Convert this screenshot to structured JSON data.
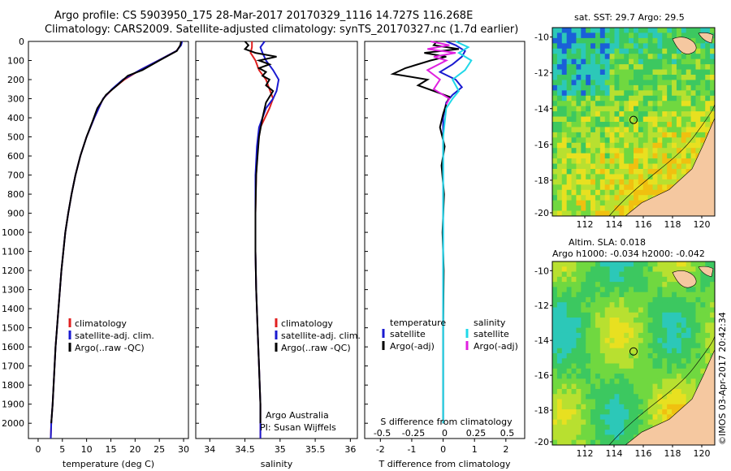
{
  "header": {
    "line1": "Argo profile: CS 5903950_175 28-Mar-2017 20170329_1116 14.727S 116.268E",
    "line2": "Climatology: CARS2009. Satellite-adjusted climatology: synTS_20170327.nc (1.7d earlier)"
  },
  "map_panels": {
    "sst_title": "sat. SST: 29.7 Argo: 29.5",
    "sla_title": "Altim. SLA: 0.018",
    "sla_subtitle": "Argo h1000: -0.034 h2000: -0.042",
    "x_ticks": [
      "112",
      "114",
      "116",
      "118",
      "120"
    ],
    "y_ticks": [
      "-10",
      "-12",
      "-14",
      "-16",
      "-18",
      "-20"
    ]
  },
  "footer": {
    "stamp": "©IMOS 03-Apr-2017 20:42:34"
  },
  "colors": {
    "climatology": "#e02020",
    "satellite": "#1a1ad0",
    "argo": "#000000",
    "sat_salinity": "#20d8e8",
    "argo_adj_salinity": "#e020e0",
    "land": "#f5c8a0"
  },
  "chart_data": [
    {
      "type": "line",
      "xlabel": "temperature (deg C)",
      "ylabel": "",
      "xlim": [
        -2,
        31
      ],
      "ylim": [
        2080,
        0
      ],
      "xticks": [
        "0",
        "5",
        "10",
        "15",
        "20",
        "25",
        "30"
      ],
      "yticks": [
        "0",
        "100",
        "200",
        "300",
        "400",
        "500",
        "600",
        "700",
        "800",
        "900",
        "1000",
        "1100",
        "1200",
        "1300",
        "1400",
        "1500",
        "1600",
        "1700",
        "1800",
        "1900",
        "2000"
      ],
      "legend": [
        "climatology",
        "satellite-adj. clim.",
        "Argo(..raw -QC)"
      ],
      "legend_position": "lower-left",
      "series": [
        {
          "name": "climatology",
          "color": "#e02020",
          "points": [
            [
              29.6,
              0
            ],
            [
              29.4,
              20
            ],
            [
              28.5,
              50
            ],
            [
              24.8,
              100
            ],
            [
              21,
              150
            ],
            [
              17.8,
              200
            ],
            [
              15.3,
              250
            ],
            [
              13.4,
              300
            ],
            [
              11.6,
              400
            ],
            [
              10,
              500
            ],
            [
              8.7,
              600
            ],
            [
              7.7,
              700
            ],
            [
              6.9,
              800
            ],
            [
              6.2,
              900
            ],
            [
              5.6,
              1000
            ],
            [
              5.2,
              1100
            ],
            [
              4.8,
              1200
            ],
            [
              4.5,
              1300
            ],
            [
              4.2,
              1400
            ],
            [
              3.9,
              1500
            ],
            [
              3.6,
              1600
            ],
            [
              3.4,
              1700
            ],
            [
              3.2,
              1800
            ],
            [
              3,
              1900
            ],
            [
              2.7,
              2000
            ],
            [
              2.6,
              2080
            ]
          ]
        },
        {
          "name": "satellite-adj. clim.",
          "color": "#1a1ad0",
          "points": [
            [
              29.7,
              0
            ],
            [
              29.5,
              20
            ],
            [
              28.5,
              50
            ],
            [
              24.8,
              100
            ],
            [
              21,
              150
            ],
            [
              17.5,
              200
            ],
            [
              15.2,
              250
            ],
            [
              13.4,
              300
            ],
            [
              11.6,
              400
            ],
            [
              10,
              500
            ],
            [
              8.7,
              600
            ],
            [
              7.7,
              700
            ],
            [
              6.9,
              800
            ],
            [
              6.2,
              900
            ],
            [
              5.6,
              1000
            ],
            [
              5.2,
              1100
            ],
            [
              4.8,
              1200
            ],
            [
              4.5,
              1300
            ],
            [
              4.2,
              1400
            ],
            [
              3.9,
              1500
            ],
            [
              3.6,
              1600
            ],
            [
              3.4,
              1700
            ],
            [
              3.2,
              1800
            ],
            [
              3,
              1900
            ],
            [
              2.7,
              2000
            ],
            [
              2.6,
              2080
            ]
          ]
        },
        {
          "name": "Argo(..raw -QC)",
          "color": "#000000",
          "points": [
            [
              29.5,
              0
            ],
            [
              29.3,
              20
            ],
            [
              28.6,
              50
            ],
            [
              25,
              100
            ],
            [
              21.5,
              150
            ],
            [
              18.5,
              180
            ],
            [
              16.3,
              230
            ],
            [
              14,
              280
            ],
            [
              12.2,
              350
            ],
            [
              11.2,
              420
            ],
            [
              10,
              500
            ],
            [
              8.7,
              600
            ],
            [
              7.7,
              700
            ],
            [
              6.9,
              800
            ],
            [
              6.2,
              900
            ],
            [
              5.6,
              1000
            ],
            [
              5.2,
              1100
            ],
            [
              4.8,
              1200
            ],
            [
              4.5,
              1300
            ],
            [
              4.2,
              1400
            ],
            [
              3.9,
              1500
            ],
            [
              3.6,
              1600
            ],
            [
              3.4,
              1700
            ],
            [
              3.2,
              1800
            ],
            [
              3,
              1900
            ],
            [
              2.7,
              2000
            ]
          ]
        }
      ]
    },
    {
      "type": "line",
      "xlabel": "salinity",
      "xlim": [
        33.8,
        36.1
      ],
      "ylim": [
        2080,
        0
      ],
      "xticks": [
        "34",
        "34.5",
        "35",
        "35.5",
        "36"
      ],
      "legend": [
        "climatology",
        "satellite-adj. clim.",
        "Argo(..raw -QC)"
      ],
      "legend_position": "lower-left",
      "annotation_line1": "Argo Australia",
      "annotation_line2": "PI: Susan Wijffels",
      "series": [
        {
          "name": "climatology",
          "color": "#e02020",
          "points": [
            [
              34.6,
              0
            ],
            [
              34.6,
              30
            ],
            [
              34.58,
              60
            ],
            [
              34.65,
              100
            ],
            [
              34.7,
              150
            ],
            [
              34.8,
              200
            ],
            [
              34.85,
              250
            ],
            [
              34.9,
              300
            ],
            [
              34.85,
              350
            ],
            [
              34.72,
              450
            ],
            [
              34.68,
              550
            ],
            [
              34.66,
              700
            ],
            [
              34.65,
              900
            ],
            [
              34.65,
              1100
            ],
            [
              34.66,
              1300
            ],
            [
              34.68,
              1500
            ],
            [
              34.7,
              1700
            ],
            [
              34.72,
              1900
            ],
            [
              34.72,
              2080
            ]
          ]
        },
        {
          "name": "satellite-adj. clim.",
          "color": "#1a1ad0",
          "points": [
            [
              34.78,
              0
            ],
            [
              34.72,
              30
            ],
            [
              34.75,
              60
            ],
            [
              34.8,
              100
            ],
            [
              34.9,
              150
            ],
            [
              34.98,
              200
            ],
            [
              34.95,
              260
            ],
            [
              34.9,
              300
            ],
            [
              34.8,
              350
            ],
            [
              34.7,
              450
            ],
            [
              34.67,
              550
            ],
            [
              34.65,
              700
            ],
            [
              34.65,
              900
            ],
            [
              34.65,
              1100
            ],
            [
              34.66,
              1300
            ],
            [
              34.68,
              1500
            ],
            [
              34.7,
              1700
            ],
            [
              34.72,
              1900
            ],
            [
              34.72,
              2080
            ]
          ]
        },
        {
          "name": "Argo(..raw -QC)",
          "color": "#000000",
          "points": [
            [
              34.5,
              0
            ],
            [
              34.55,
              20
            ],
            [
              34.5,
              40
            ],
            [
              34.65,
              60
            ],
            [
              34.95,
              80
            ],
            [
              34.7,
              100
            ],
            [
              34.85,
              120
            ],
            [
              34.7,
              140
            ],
            [
              34.8,
              160
            ],
            [
              34.75,
              180
            ],
            [
              34.85,
              200
            ],
            [
              34.8,
              230
            ],
            [
              34.9,
              260
            ],
            [
              34.85,
              290
            ],
            [
              34.8,
              320
            ],
            [
              34.75,
              400
            ],
            [
              34.7,
              500
            ],
            [
              34.68,
              600
            ],
            [
              34.66,
              700
            ],
            [
              34.65,
              900
            ],
            [
              34.65,
              1100
            ],
            [
              34.66,
              1300
            ],
            [
              34.68,
              1500
            ],
            [
              34.7,
              1700
            ],
            [
              34.72,
              1900
            ],
            [
              34.72,
              2000
            ]
          ]
        }
      ]
    },
    {
      "type": "line",
      "xlabel": "T difference from climatology",
      "xlabel_top": "S difference from climatology",
      "xlim": [
        -2.5,
        2.6
      ],
      "ylim": [
        2080,
        0
      ],
      "xticks": [
        "-2",
        "-1",
        "0",
        "1",
        "2"
      ],
      "xticks_top": [
        "-0.5",
        "-0.25",
        "0",
        "0.25",
        "0.5"
      ],
      "legend_temperature": [
        "temperature",
        "satellite",
        "Argo(-adj)"
      ],
      "legend_salinity": [
        "salinity",
        "satellite",
        "Argo(-adj)"
      ],
      "legend_position": "lower-center",
      "series": [
        {
          "name": "temperature satellite",
          "color": "#1a1ad0",
          "points": [
            [
              0.1,
              0
            ],
            [
              0.4,
              20
            ],
            [
              0.7,
              50
            ],
            [
              0.6,
              80
            ],
            [
              0.3,
              120
            ],
            [
              -0.1,
              160
            ],
            [
              0.4,
              200
            ],
            [
              0.6,
              240
            ],
            [
              0.3,
              280
            ],
            [
              0.1,
              320
            ],
            [
              0,
              400
            ],
            [
              0,
              600
            ],
            [
              0,
              1000
            ],
            [
              0,
              1500
            ],
            [
              0,
              2000
            ]
          ]
        },
        {
          "name": "temperature Argo(-adj)",
          "color": "#000000",
          "points": [
            [
              -0.2,
              0
            ],
            [
              -0.3,
              20
            ],
            [
              0.5,
              40
            ],
            [
              -0.6,
              60
            ],
            [
              0.1,
              80
            ],
            [
              -0.4,
              100
            ],
            [
              -1.2,
              140
            ],
            [
              -1.6,
              170
            ],
            [
              -0.5,
              200
            ],
            [
              -0.8,
              230
            ],
            [
              -0.3,
              260
            ],
            [
              0.2,
              290
            ],
            [
              0.1,
              330
            ],
            [
              0,
              380
            ],
            [
              -0.1,
              450
            ],
            [
              0.05,
              550
            ],
            [
              -0.05,
              650
            ],
            [
              0.03,
              800
            ],
            [
              -0.02,
              1000
            ],
            [
              0.02,
              1200
            ],
            [
              0,
              1500
            ],
            [
              0,
              2000
            ]
          ]
        },
        {
          "name": "salinity satellite",
          "color": "#20d8e8",
          "points": [
            [
              0.4,
              0
            ],
            [
              0.8,
              30
            ],
            [
              0.5,
              60
            ],
            [
              0.9,
              100
            ],
            [
              0.7,
              150
            ],
            [
              0.3,
              200
            ],
            [
              0.5,
              260
            ],
            [
              0.3,
              300
            ],
            [
              0.1,
              350
            ],
            [
              0,
              500
            ],
            [
              0,
              700
            ],
            [
              0,
              900
            ],
            [
              0,
              1200
            ],
            [
              0,
              1500
            ],
            [
              0,
              2000
            ]
          ]
        },
        {
          "name": "salinity Argo(-adj)",
          "color": "#e020e0",
          "points": [
            [
              -0.4,
              0
            ],
            [
              0.2,
              20
            ],
            [
              -0.5,
              40
            ],
            [
              0.4,
              60
            ],
            [
              -0.3,
              80
            ],
            [
              0.1,
              100
            ],
            [
              -0.5,
              150
            ],
            [
              -0.1,
              200
            ],
            [
              -0.3,
              250
            ],
            [
              0.2,
              300
            ],
            [
              0.1,
              330
            ]
          ]
        }
      ]
    }
  ]
}
